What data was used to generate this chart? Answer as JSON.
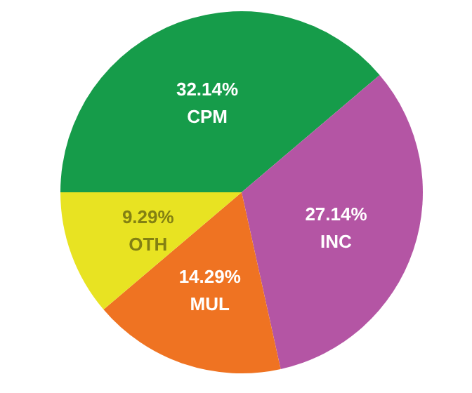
{
  "chart_data": {
    "type": "pie",
    "categories": [
      "CPM",
      "INC",
      "MUL",
      "OTH"
    ],
    "values": [
      32.14,
      27.14,
      14.29,
      9.29
    ],
    "value_labels": [
      "32.14%",
      "27.14%",
      "14.29%",
      "9.29%"
    ],
    "colors": [
      "#169c4a",
      "#b455a4",
      "#ef7322",
      "#e8e322"
    ]
  }
}
